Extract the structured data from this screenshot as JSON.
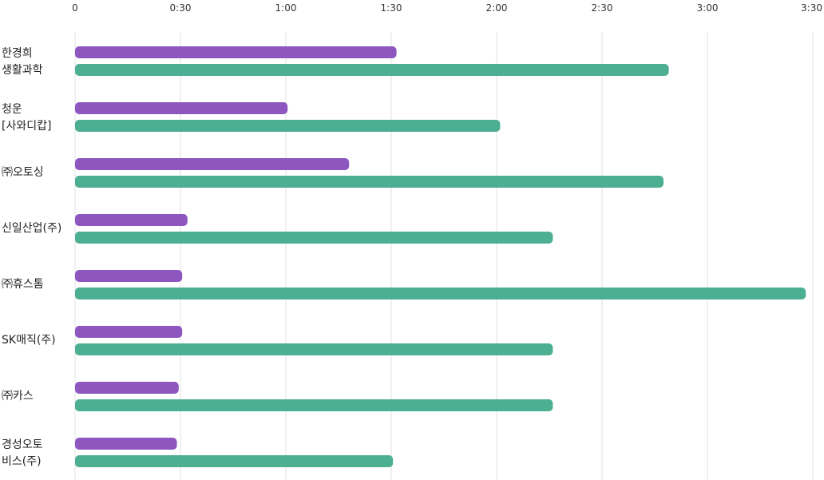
{
  "chart_data": {
    "type": "bar",
    "orientation": "horizontal",
    "x_tick_labels": [
      "0",
      "0:30",
      "1:00",
      "1:30",
      "2:00",
      "2:30",
      "3:00",
      "3:30"
    ],
    "xlim_minutes": [
      0,
      210
    ],
    "x_axis_position": "top",
    "grid": true,
    "categories": [
      [
        "한경희",
        "생활과학"
      ],
      [
        "청운",
        "[사와디캅]"
      ],
      [
        "㈜오토싱"
      ],
      [
        "신일산업(주)"
      ],
      [
        "㈜휴스톰"
      ],
      [
        "SK매직(주)"
      ],
      [
        "㈜카스"
      ],
      [
        "경성오토",
        "비스(주)"
      ]
    ],
    "series": [
      {
        "color": "#8e57c0",
        "values_minutes": [
          91.5,
          60.5,
          78,
          32,
          30.5,
          30.5,
          29.5,
          29
        ]
      },
      {
        "color": "#4daf91",
        "values_minutes": [
          169,
          121,
          167.5,
          136,
          208,
          136,
          136,
          90.5
        ]
      }
    ]
  }
}
